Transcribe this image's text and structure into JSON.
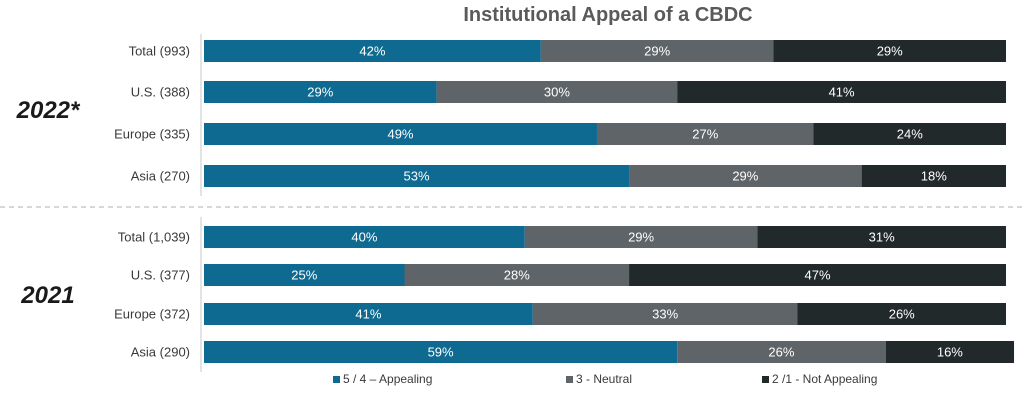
{
  "chart_data": {
    "type": "bar",
    "orientation": "horizontal-stacked-100",
    "title": "Institutional Appeal of a CBDC",
    "colors": {
      "5 / 4 – Appealing": "#0e6a91",
      "3 - Neutral": "#5f6468",
      "2 /1 - Not Appealing": "#22292b"
    },
    "legend": {
      "placement": "bottom",
      "entries": [
        "5 / 4 – Appealing",
        "3 - Neutral",
        "2 /1 - Not Appealing"
      ]
    },
    "groups": [
      {
        "label": "2022*",
        "categories": [
          "Total (993)",
          "U.S. (388)",
          "Europe (335)",
          "Asia (270)"
        ],
        "series": [
          {
            "name": "5 / 4 – Appealing",
            "values": [
              42,
              29,
              49,
              53
            ]
          },
          {
            "name": "3 - Neutral",
            "values": [
              29,
              30,
              27,
              29
            ]
          },
          {
            "name": "2 /1 - Not Appealing",
            "values": [
              29,
              41,
              24,
              18
            ]
          }
        ]
      },
      {
        "label": "2021",
        "categories": [
          "Total (1,039)",
          "U.S. (377)",
          "Europe (372)",
          "Asia (290)"
        ],
        "series": [
          {
            "name": "5 / 4 – Appealing",
            "values": [
              40,
              25,
              41,
              59
            ]
          },
          {
            "name": "3 - Neutral",
            "values": [
              29,
              28,
              33,
              26
            ]
          },
          {
            "name": "2 /1 - Not Appealing",
            "values": [
              31,
              47,
              26,
              16
            ]
          }
        ]
      }
    ],
    "value_suffix": "%",
    "xlim": [
      0,
      100
    ],
    "grid": false
  }
}
